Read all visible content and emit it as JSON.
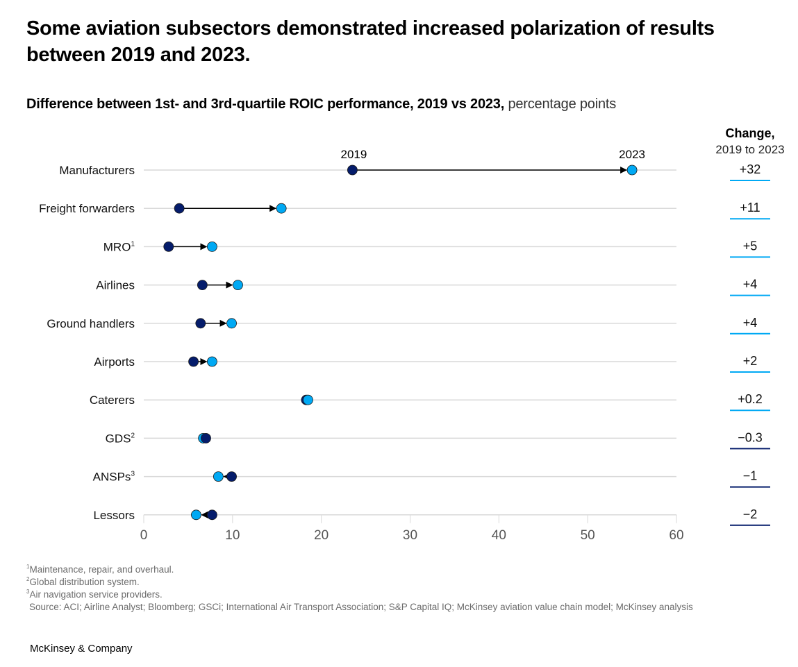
{
  "title": "Some aviation subsectors demonstrated increased polarization of results between 2019 and 2023.",
  "subtitle": {
    "bold": "Difference between 1st- and 3rd-quartile ROIC performance, 2019 vs 2023,",
    "unit": " percentage points"
  },
  "change_header": {
    "line1": "Change,",
    "line2": "2019 to 2023"
  },
  "colors": {
    "y2019": "#051c6b",
    "y2023": "#00a9f4",
    "positive_underline": "#00a9f4",
    "negative_underline": "#051c6b",
    "gridline": "#d9d9d9",
    "arrow": "#000000"
  },
  "chart_data": {
    "type": "dumbbell",
    "title": "Difference between 1st- and 3rd-quartile ROIC performance, 2019 vs 2023, percentage points",
    "xlabel": "",
    "ylabel": "",
    "xlim": [
      0,
      60
    ],
    "xticks": [
      0,
      10,
      20,
      30,
      40,
      50,
      60
    ],
    "grid": true,
    "series_labels": [
      "2019",
      "2023"
    ],
    "categories": [
      {
        "label": "Manufacturers",
        "sup": "",
        "v2019": 23.5,
        "v2023": 55.0,
        "change": "+32"
      },
      {
        "label": "Freight forwarders",
        "sup": "",
        "v2019": 4.0,
        "v2023": 15.5,
        "change": "+11"
      },
      {
        "label": "MRO",
        "sup": "1",
        "v2019": 2.8,
        "v2023": 7.7,
        "change": "+5"
      },
      {
        "label": "Airlines",
        "sup": "",
        "v2019": 6.6,
        "v2023": 10.6,
        "change": "+4"
      },
      {
        "label": "Ground handlers",
        "sup": "",
        "v2019": 6.4,
        "v2023": 9.9,
        "change": "+4"
      },
      {
        "label": "Airports",
        "sup": "",
        "v2019": 5.6,
        "v2023": 7.7,
        "change": "+2"
      },
      {
        "label": "Caterers",
        "sup": "",
        "v2019": 18.3,
        "v2023": 18.5,
        "change": "+0.2"
      },
      {
        "label": "GDS",
        "sup": "2",
        "v2019": 7.0,
        "v2023": 6.7,
        "change": "−0.3"
      },
      {
        "label": "ANSPs",
        "sup": "3",
        "v2019": 9.9,
        "v2023": 8.4,
        "change": "−1"
      },
      {
        "label": "Lessors",
        "sup": "",
        "v2019": 7.7,
        "v2023": 5.9,
        "change": "−2"
      }
    ]
  },
  "footnotes": [
    {
      "sup": "1",
      "text": "Maintenance, repair, and overhaul."
    },
    {
      "sup": "2",
      "text": "Global distribution system."
    },
    {
      "sup": "3",
      "text": "Air navigation service providers."
    }
  ],
  "source": "Source: ACI; Airline Analyst; Bloomberg; GSCi; International Air Transport Association; S&P Capital IQ; McKinsey aviation value chain model; McKinsey analysis",
  "brand": "McKinsey & Company"
}
